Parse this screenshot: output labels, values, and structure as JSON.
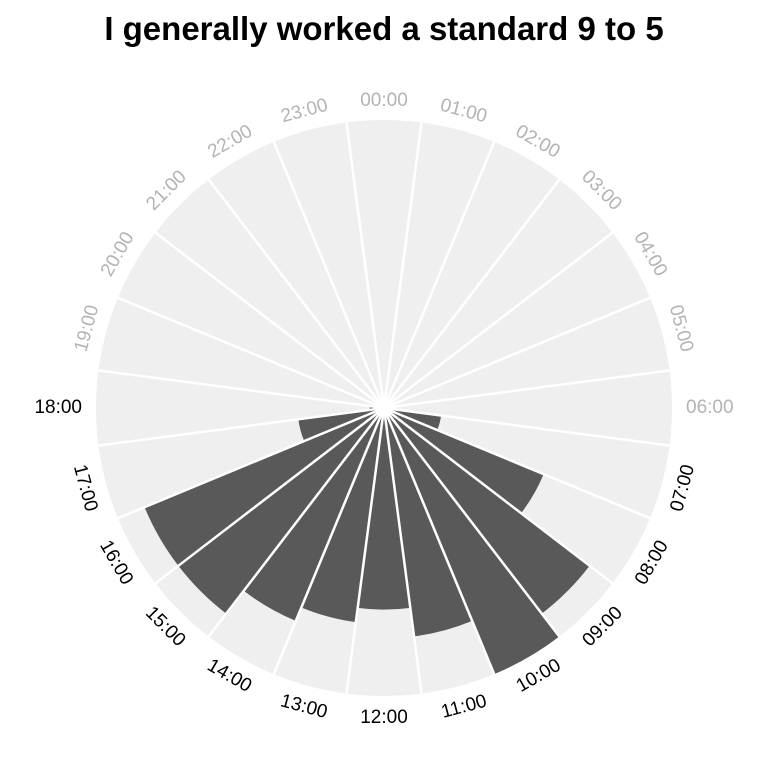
{
  "chart_data": {
    "type": "bar",
    "coordinate_system": "polar",
    "title": "I generally worked a standard 9 to 5",
    "xlabel": "",
    "ylabel": "",
    "categories": [
      "00:00",
      "01:00",
      "02:00",
      "03:00",
      "04:00",
      "05:00",
      "06:00",
      "07:00",
      "08:00",
      "09:00",
      "10:00",
      "11:00",
      "12:00",
      "13:00",
      "14:00",
      "15:00",
      "16:00",
      "17:00",
      "18:00",
      "19:00",
      "20:00",
      "21:00",
      "22:00",
      "23:00"
    ],
    "values": [
      0,
      0,
      0,
      0,
      0,
      0,
      0,
      0.2,
      0.6,
      0.9,
      1.0,
      0.8,
      0.7,
      0.75,
      0.8,
      0.9,
      0.9,
      0.3,
      0.05,
      0,
      0,
      0,
      0,
      0
    ],
    "ylim": [
      0,
      1.0
    ],
    "grid": false,
    "legend": "none",
    "colors": {
      "bar": "#595959",
      "panel": "#efefef",
      "spoke": "#ffffff",
      "label_active": "#000000",
      "label_inactive": "#b3b3b3"
    }
  }
}
